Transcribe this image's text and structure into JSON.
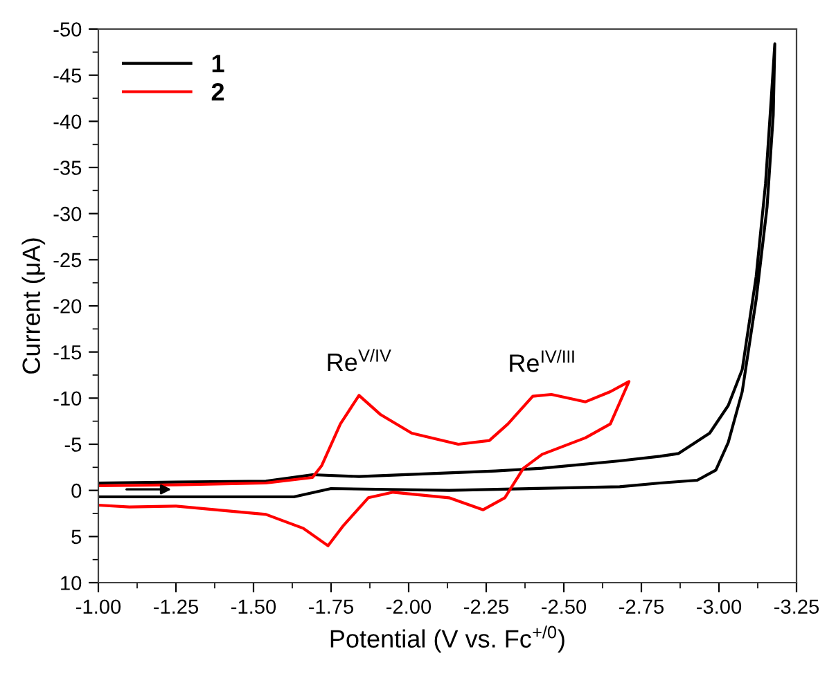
{
  "chart_data": {
    "type": "line",
    "xlabel": "Potential (V vs. Fc$^{+/0}$)",
    "ylabel": "Current (μA)",
    "series": [
      {
        "name": "1",
        "color": "#000000",
        "x": [
          -1.0,
          -1.25,
          -1.54,
          -1.69,
          -1.84,
          -2.28,
          -2.43,
          -2.68,
          -2.81,
          -2.87,
          -2.97,
          -3.03,
          -3.075,
          -3.12,
          -3.15,
          -3.17,
          -3.18,
          -3.175,
          -3.155,
          -3.12,
          -3.075,
          -3.03,
          -2.99,
          -2.93,
          -2.81,
          -2.68,
          -2.13,
          -1.75,
          -1.63,
          -1.25,
          -1.0
        ],
        "values": [
          -0.8,
          -0.9,
          -1.0,
          -1.7,
          -1.5,
          -2.1,
          -2.4,
          -3.2,
          -3.7,
          -4.0,
          -6.2,
          -9.2,
          -13.1,
          -23.2,
          -33.2,
          -43.2,
          -48.4,
          -40.7,
          -30.7,
          -20.7,
          -10.7,
          -5.2,
          -2.2,
          -1.1,
          -0.8,
          -0.4,
          0.0,
          -0.2,
          0.7,
          0.7,
          0.7
        ]
      },
      {
        "name": "2",
        "color": "#ff0000",
        "x": [
          -1.0,
          -1.25,
          -1.54,
          -1.69,
          -1.72,
          -1.78,
          -1.84,
          -1.91,
          -2.01,
          -2.16,
          -2.26,
          -2.32,
          -2.4,
          -2.46,
          -2.57,
          -2.65,
          -2.71,
          -2.65,
          -2.57,
          -2.43,
          -2.37,
          -2.31,
          -2.24,
          -2.13,
          -1.95,
          -1.87,
          -1.79,
          -1.74,
          -1.66,
          -1.54,
          -1.25,
          -1.1,
          -1.0
        ],
        "values": [
          -0.5,
          -0.6,
          -0.8,
          -1.4,
          -2.7,
          -7.2,
          -10.3,
          -8.2,
          -6.2,
          -5.0,
          -5.4,
          -7.2,
          -10.2,
          -10.4,
          -9.6,
          -10.7,
          -11.8,
          -7.2,
          -5.7,
          -3.9,
          -2.4,
          0.8,
          2.1,
          0.8,
          0.2,
          0.8,
          3.8,
          6.0,
          4.1,
          2.6,
          1.7,
          1.8,
          1.6
        ]
      }
    ],
    "xlim": [
      -1.0,
      -3.25
    ],
    "ylim": [
      10,
      -50
    ],
    "xticks": [
      {
        "value": -1.0,
        "label": "-1.00"
      },
      {
        "value": -1.25,
        "label": "-1.25"
      },
      {
        "value": -1.5,
        "label": "-1.50"
      },
      {
        "value": -1.75,
        "label": "-1.75"
      },
      {
        "value": -2.0,
        "label": "-2.00"
      },
      {
        "value": -2.25,
        "label": "-2.25"
      },
      {
        "value": -2.5,
        "label": "-2.50"
      },
      {
        "value": -2.75,
        "label": "-2.75"
      },
      {
        "value": -3.0,
        "label": "-3.00"
      },
      {
        "value": -3.25,
        "label": "-3.25"
      }
    ],
    "yticks": [
      10,
      5,
      0,
      -5,
      -10,
      -15,
      -20,
      -25,
      -30,
      -35,
      -40,
      -45,
      -50
    ],
    "annotations": [
      {
        "text": "Re$^{V/IV}$",
        "x": -1.84,
        "y": -10.3
      },
      {
        "text": "Re$^{IV/III}$",
        "x": -2.43,
        "y": -10.2
      }
    ],
    "legend": "top left",
    "grid": false,
    "marker": "none",
    "line_style": "solid"
  }
}
